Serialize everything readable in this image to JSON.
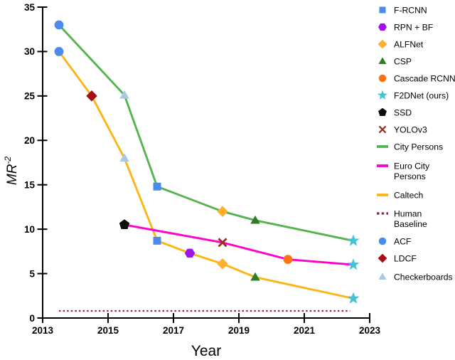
{
  "chart_data": {
    "type": "line",
    "title": "",
    "xlabel": "Year",
    "ylabel": "MR",
    "ylabel_superscript": "-2",
    "xlim": [
      2013,
      2023
    ],
    "ylim": [
      0,
      35
    ],
    "xticks": [
      "2013",
      "2015",
      "2017",
      "2019",
      "2021",
      "2023"
    ],
    "yticks": [
      "0",
      "5",
      "10",
      "15",
      "20",
      "25",
      "30",
      "35"
    ],
    "grid": false,
    "legend_position": "right",
    "series": [
      {
        "name": "City Persons",
        "color": "#56b44e",
        "points": [
          {
            "x": 2013.5,
            "y": 33.0,
            "method": "ACF"
          },
          {
            "x": 2015.5,
            "y": 25.1,
            "method": "Checkerboards"
          },
          {
            "x": 2016.5,
            "y": 14.8,
            "method": "F-RCNN"
          },
          {
            "x": 2018.5,
            "y": 12.0,
            "method": "ALFNet"
          },
          {
            "x": 2019.5,
            "y": 11.0,
            "method": "CSP"
          },
          {
            "x": 2022.5,
            "y": 8.7,
            "method": "F2DNet (ours)"
          }
        ]
      },
      {
        "name": "Euro City Persons",
        "color": "#ff00cf",
        "points": [
          {
            "x": 2015.5,
            "y": 10.5,
            "method": "SSD"
          },
          {
            "x": 2018.5,
            "y": 8.5,
            "method": "YOLOv3"
          },
          {
            "x": 2020.5,
            "y": 6.6,
            "method": "Cascade RCNN"
          },
          {
            "x": 2022.5,
            "y": 6.0,
            "method": "F2DNet (ours)"
          }
        ]
      },
      {
        "name": "Caltech",
        "color": "#fdb515",
        "points": [
          {
            "x": 2013.5,
            "y": 30.0,
            "method": "ACF"
          },
          {
            "x": 2014.5,
            "y": 25.0,
            "method": "LDCF"
          },
          {
            "x": 2015.5,
            "y": 18.0,
            "method": "Checkerboards"
          },
          {
            "x": 2016.5,
            "y": 8.7,
            "method": "F-RCNN"
          },
          {
            "x": 2017.5,
            "y": 7.3,
            "method": "RPN + BF"
          },
          {
            "x": 2018.5,
            "y": 6.1,
            "method": "ALFNet"
          },
          {
            "x": 2019.5,
            "y": 4.6,
            "method": "CSP"
          },
          {
            "x": 2022.5,
            "y": 2.2,
            "method": "F2DNet (ours)"
          }
        ]
      }
    ],
    "baseline": {
      "name": "Human Baseline",
      "color": "#8e2457",
      "y": 0.8,
      "x_start": 2013.5,
      "x_end": 2022.4,
      "style": "dotted"
    },
    "methods": {
      "F-RCNN": {
        "shape": "square",
        "color": "#4b8bee"
      },
      "RPN + BF": {
        "shape": "hexagon",
        "color": "#9f12f0"
      },
      "ALFNet": {
        "shape": "diamond",
        "color": "#ffb02e"
      },
      "CSP": {
        "shape": "triangle",
        "color": "#2e7d28"
      },
      "Cascade RCNN": {
        "shape": "circle",
        "color": "#ff7214"
      },
      "F2DNet (ours)": {
        "shape": "star",
        "color": "#45c3d3"
      },
      "SSD": {
        "shape": "pentagon",
        "color": "#0d0d0d"
      },
      "YOLOv3": {
        "shape": "x",
        "color": "#963222"
      },
      "ACF": {
        "shape": "circle",
        "color": "#4b8bee"
      },
      "LDCF": {
        "shape": "diamond",
        "color": "#a50f15"
      },
      "Checkerboards": {
        "shape": "triangle",
        "color": "#a9c7e8"
      }
    },
    "legend": [
      {
        "label": [
          "F-RCNN"
        ],
        "shape": "square",
        "color": "#4b8bee"
      },
      {
        "label": [
          "RPN + BF"
        ],
        "shape": "hexagon",
        "color": "#9f12f0"
      },
      {
        "label": [
          "ALFNet"
        ],
        "shape": "diamond",
        "color": "#ffb02e"
      },
      {
        "label": [
          "CSP"
        ],
        "shape": "triangle",
        "color": "#2e7d28"
      },
      {
        "label": [
          "Cascade RCNN"
        ],
        "shape": "circle",
        "color": "#ff7214"
      },
      {
        "label": [
          "F2DNet (ours)"
        ],
        "shape": "star",
        "color": "#45c3d3"
      },
      {
        "label": [
          "SSD"
        ],
        "shape": "pentagon",
        "color": "#0d0d0d"
      },
      {
        "label": [
          "YOLOv3"
        ],
        "shape": "x",
        "color": "#963222"
      },
      {
        "label": [
          "City Persons"
        ],
        "shape": "line",
        "color": "#56b44e"
      },
      {
        "label": [
          "Euro City",
          "Persons"
        ],
        "shape": "line",
        "color": "#ff00cf"
      },
      {
        "label": [
          "Caltech"
        ],
        "shape": "line",
        "color": "#fdb515"
      },
      {
        "label": [
          "Human",
          "Baseline"
        ],
        "shape": "dotted-line",
        "color": "#8e2457"
      },
      {
        "label": [
          "ACF"
        ],
        "shape": "circle",
        "color": "#4b8bee"
      },
      {
        "label": [
          "LDCF"
        ],
        "shape": "diamond",
        "color": "#a50f15"
      },
      {
        "label": [
          "Checkerboards"
        ],
        "shape": "triangle",
        "color": "#a9c7e8"
      }
    ]
  }
}
